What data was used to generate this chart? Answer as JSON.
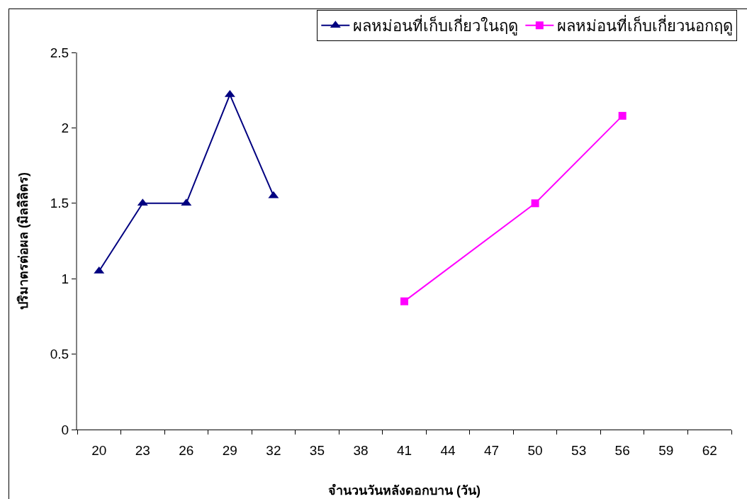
{
  "chart_data": {
    "type": "line",
    "xlabel": "จำนวนวันหลังดอกบาน (วัน)",
    "ylabel": "ปริมาตรต่อผล (มิลลิลิตร)",
    "categories": [
      "20",
      "23",
      "26",
      "29",
      "32",
      "35",
      "38",
      "41",
      "44",
      "47",
      "50",
      "53",
      "56",
      "59",
      "62"
    ],
    "series": [
      {
        "name": "ผลหม่อนที่เก็บเกี่ยวในฤดู",
        "color": "#000080",
        "marker": "triangle",
        "x": [
          "20",
          "23",
          "26",
          "29",
          "32"
        ],
        "values": [
          1.05,
          1.5,
          1.5,
          2.22,
          1.55
        ]
      },
      {
        "name": "ผลหม่อนที่เก็บเกี่ยวนอกฤดู",
        "color": "#ff00ff",
        "marker": "square",
        "x": [
          "41",
          "50",
          "56"
        ],
        "values": [
          0.85,
          1.5,
          2.08
        ]
      }
    ],
    "ylim": [
      0,
      2.5
    ],
    "yticks": [
      0,
      0.5,
      1,
      1.5,
      2,
      2.5
    ],
    "grid": false,
    "legend": "top right",
    "line_style": "solid"
  }
}
